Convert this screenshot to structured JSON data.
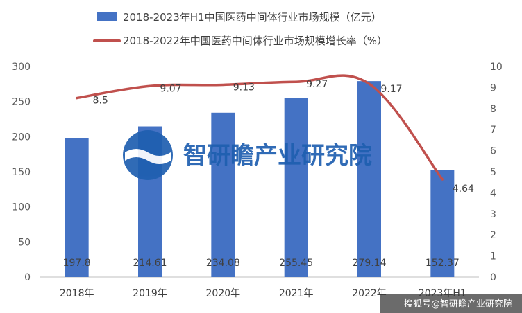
{
  "chart_data": {
    "type": "bar",
    "categories": [
      "2018年",
      "2019年",
      "2020年",
      "2021年",
      "2022年",
      "2023年H1"
    ],
    "series": [
      {
        "name": "2018-2023年H1中国医药中间体行业市场规模（亿元）",
        "type": "bar",
        "axis": "left",
        "color": "#4472c4",
        "values": [
          197.8,
          214.61,
          234.08,
          255.45,
          279.14,
          152.37
        ]
      },
      {
        "name": "2018-2022年中国医药中间体行业市场规模增长率（%）",
        "type": "line",
        "axis": "right",
        "color": "#c0504d",
        "values": [
          8.5,
          9.07,
          9.13,
          9.27,
          9.17,
          4.64
        ]
      }
    ],
    "y_left": {
      "min": 0,
      "max": 300,
      "ticks": [
        0,
        50,
        100,
        150,
        200,
        250,
        300
      ]
    },
    "y_right": {
      "min": 0,
      "max": 10,
      "ticks": [
        0,
        1,
        2,
        3,
        4,
        5,
        6,
        7,
        8,
        9,
        10
      ]
    },
    "legend_position": "top",
    "grid": false
  },
  "watermark": {
    "text": "智研瞻产业研究院"
  },
  "footer": {
    "text": "搜狐号@智研瞻产业研究院"
  }
}
